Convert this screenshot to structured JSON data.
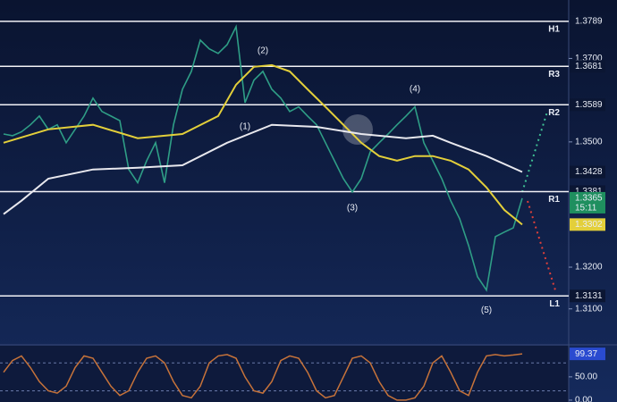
{
  "chart_data": [
    {
      "type": "line",
      "series": [
        {
          "color": "#2f9e86",
          "values": [
            1.3519,
            1.3515,
            1.3524,
            1.3541,
            1.3562,
            1.353,
            1.3541,
            1.3498,
            1.353,
            1.3562,
            1.3605,
            1.3573,
            1.3562,
            1.3551,
            1.3434,
            1.3402,
            1.3455,
            1.3498,
            1.3402,
            1.3541,
            1.3626,
            1.3669,
            1.3744,
            1.3723,
            1.3712,
            1.3733,
            1.3776,
            1.3594,
            1.3648,
            1.3669,
            1.3626,
            1.3605,
            1.3573,
            1.3584,
            1.3562,
            1.3541,
            1.3498,
            1.3455,
            1.3412,
            1.338,
            1.3412,
            1.3476,
            1.3498,
            1.3519,
            1.3541,
            1.3562,
            1.3584,
            1.3498,
            1.3455,
            1.3412,
            1.3359,
            1.3316,
            1.3252,
            1.3177,
            1.3145,
            1.3273,
            1.3284,
            1.3294,
            1.3365
          ]
        },
        {
          "color": "#e3cf3a",
          "x": [
            0,
            5,
            10,
            15,
            20,
            24,
            26,
            28,
            30,
            32,
            34,
            36,
            38,
            40,
            42,
            44,
            46,
            48,
            50,
            52,
            54,
            56,
            58
          ],
          "values": [
            1.3498,
            1.353,
            1.3541,
            1.3509,
            1.3519,
            1.3562,
            1.3637,
            1.368,
            1.3684,
            1.3669,
            1.3626,
            1.3584,
            1.3541,
            1.3498,
            1.3466,
            1.3455,
            1.3466,
            1.3466,
            1.3455,
            1.3434,
            1.3391,
            1.3337,
            1.3302
          ]
        },
        {
          "color": "#e8e8ee",
          "x": [
            0,
            2,
            5,
            10,
            15,
            20,
            25,
            30,
            35,
            40,
            45,
            48,
            50,
            54,
            58
          ],
          "values": [
            1.3327,
            1.3359,
            1.3412,
            1.3434,
            1.3438,
            1.3444,
            1.3498,
            1.3541,
            1.3536,
            1.3519,
            1.3509,
            1.3515,
            1.3498,
            1.3466,
            1.3428
          ]
        }
      ],
      "ylim": [
        1.3016,
        1.384
      ],
      "yticks": [
        {
          "value": 1.31,
          "label": "1.3100"
        },
        {
          "value": 1.32,
          "label": "1.3200"
        },
        {
          "value": 1.35,
          "label": "1.3500"
        },
        {
          "value": 1.37,
          "label": "1.3700"
        }
      ],
      "levels": [
        {
          "label": "H1",
          "value": 1.3789
        },
        {
          "label": "R3",
          "value": 1.3681
        },
        {
          "label": "R2",
          "value": 1.3589
        },
        {
          "label": "R1",
          "value": 1.3381
        },
        {
          "label": "L1",
          "value": 1.3131
        }
      ],
      "annotations": [
        {
          "text": "(1)",
          "x": 27,
          "y": 1.3536
        },
        {
          "text": "(2)",
          "x": 29,
          "y": 1.3718
        },
        {
          "text": "(3)",
          "x": 39,
          "y": 1.3342
        },
        {
          "text": "(4)",
          "x": 46,
          "y": 1.3626
        },
        {
          "text": "(5)",
          "x": 54,
          "y": 1.3097
        }
      ],
      "countdown": "15:11"
    },
    {
      "type": "line",
      "color": "#c7733a",
      "values": [
        60,
        85,
        95,
        70,
        40,
        20,
        15,
        30,
        70,
        95,
        90,
        60,
        30,
        10,
        20,
        60,
        90,
        95,
        80,
        40,
        10,
        5,
        30,
        80,
        95,
        98,
        90,
        50,
        20,
        15,
        40,
        85,
        95,
        90,
        60,
        20,
        5,
        10,
        50,
        90,
        95,
        80,
        40,
        10,
        0,
        0,
        5,
        30,
        80,
        95,
        60,
        20,
        10,
        60,
        95,
        98,
        95,
        97,
        99.37
      ],
      "ylim": [
        -4,
        115
      ],
      "yticks": [
        {
          "value": 50,
          "label": "50.00"
        },
        {
          "value": 0,
          "label": "0.00"
        }
      ],
      "guides": [
        80,
        20
      ]
    }
  ]
}
